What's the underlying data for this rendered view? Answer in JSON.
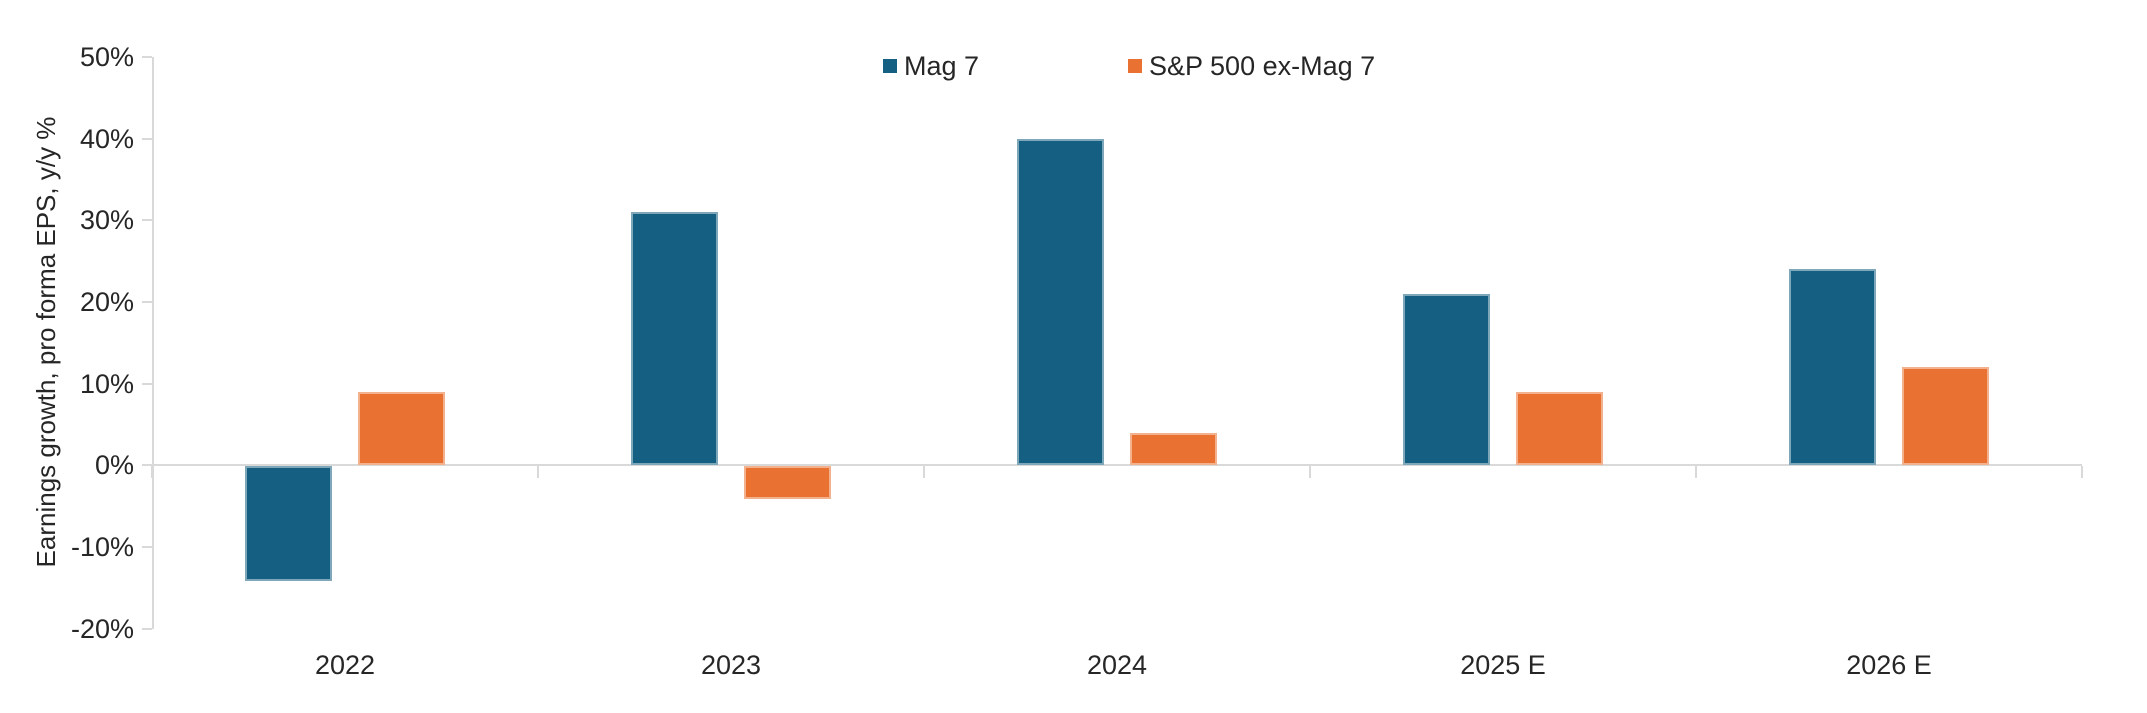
{
  "chart_data": {
    "type": "bar",
    "title": "",
    "ylabel": "Earnings growth, pro forma EPS, y/y %",
    "categories": [
      "2022",
      "2023",
      "2024",
      "2025 E",
      "2026 E"
    ],
    "series": [
      {
        "name": "Mag 7",
        "color": "#156082",
        "values": [
          -14,
          31,
          40,
          21,
          24
        ]
      },
      {
        "name": "S&P 500 ex-Mag 7",
        "color": "#E97132",
        "values": [
          9,
          -4,
          4,
          9,
          12
        ]
      }
    ],
    "ylim": [
      -20,
      50
    ],
    "ytick_step": 10,
    "ytick_labels": [
      "50%",
      "40%",
      "30%",
      "20%",
      "10%",
      "0%",
      "-10%",
      "-20%"
    ],
    "grid": false,
    "legend_position": "top-center",
    "axis_color": "#D9D9D9",
    "text_color": "#262626"
  }
}
